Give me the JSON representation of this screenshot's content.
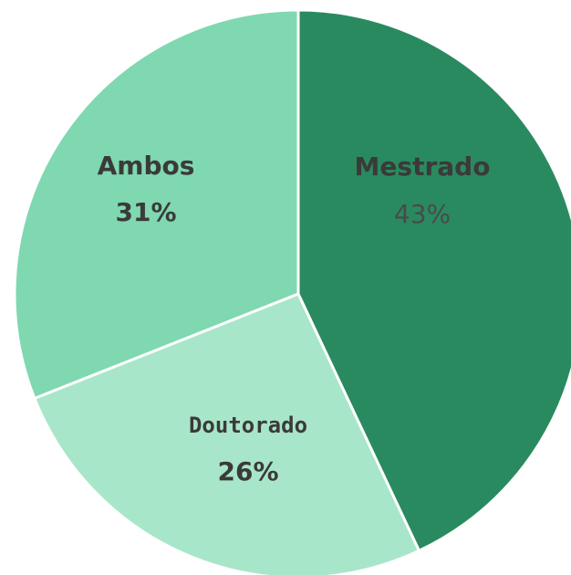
{
  "chart_data": {
    "type": "pie",
    "categories": [
      "Mestrado",
      "Doutorado",
      "Ambos"
    ],
    "values": [
      43,
      26,
      31
    ],
    "value_labels": [
      "43%",
      "26%",
      "31%"
    ],
    "colors": [
      "#2a8a5f",
      "#a8e6c9",
      "#7fd8b0"
    ]
  }
}
